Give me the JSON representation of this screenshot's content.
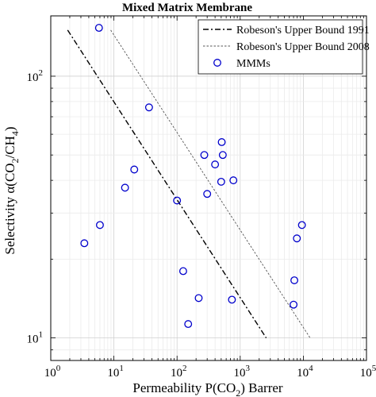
{
  "chart_data": {
    "type": "scatter",
    "title": "Mixed Matrix Membrane",
    "xlabel": "Permeability P(CO2) Barrer",
    "ylabel": "Selectivity α(CO2/CH4)",
    "x_scale": "log",
    "y_scale": "log",
    "xlim": [
      1,
      100000
    ],
    "ylim": [
      8.2,
      170
    ],
    "grid": true,
    "legend_position": "top-right",
    "x_ticks": [
      {
        "value": 1,
        "base": "10",
        "exp": "0"
      },
      {
        "value": 10,
        "base": "10",
        "exp": "1"
      },
      {
        "value": 100,
        "base": "10",
        "exp": "2"
      },
      {
        "value": 1000,
        "base": "10",
        "exp": "3"
      },
      {
        "value": 10000,
        "base": "10",
        "exp": "4"
      },
      {
        "value": 100000,
        "base": "10",
        "exp": "5"
      }
    ],
    "y_ticks": [
      {
        "value": 10,
        "base": "10",
        "exp": "1"
      },
      {
        "value": 100,
        "base": "10",
        "exp": "2"
      }
    ],
    "series": [
      {
        "name": "Robeson's Upper Bound 1991",
        "kind": "line",
        "style": "dash-dot",
        "color": "#000000",
        "x": [
          1.85,
          2580
        ],
        "y": [
          150,
          10
        ]
      },
      {
        "name": "Robeson's Upper Bound 2008",
        "kind": "line",
        "style": "dotted",
        "color": "#555555",
        "x": [
          8.9,
          12800
        ],
        "y": [
          150,
          10
        ]
      },
      {
        "name": "MMMs",
        "kind": "scatter",
        "marker": "circle",
        "color": "#0000cc",
        "x": [
          5.8,
          3.4,
          6,
          15,
          21,
          36,
          100,
          125,
          220,
          150,
          300,
          270,
          400,
          510,
          530,
          500,
          780,
          740,
          7000,
          7200,
          7900,
          9500
        ],
        "y": [
          153,
          23,
          27,
          37.5,
          44,
          76,
          33.5,
          18,
          14.2,
          11.3,
          35.5,
          50,
          46,
          56,
          50,
          39.5,
          40,
          14,
          13.4,
          16.6,
          24,
          27
        ]
      }
    ]
  }
}
